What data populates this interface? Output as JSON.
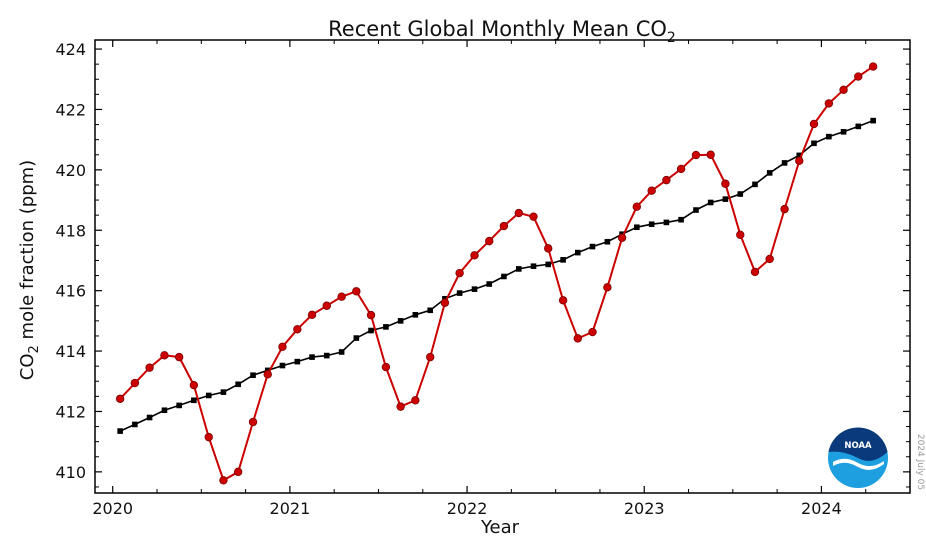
{
  "chart_data": {
    "type": "line",
    "title": "Recent Global Monthly Mean CO",
    "title_subscript": "2",
    "xlabel": "Year",
    "ylabel": {
      "prefix": "CO",
      "subscript": "2",
      "suffix": " mole fraction (ppm)"
    },
    "xlim": [
      2019.9,
      2024.5
    ],
    "ylim": [
      409.3,
      424.3
    ],
    "xticks": [
      2020,
      2021,
      2022,
      2023,
      2024
    ],
    "xtick_labels": [
      "2020",
      "2021",
      "2022",
      "2023",
      "2024"
    ],
    "yticks": [
      410,
      412,
      414,
      416,
      418,
      420,
      422,
      424
    ],
    "ytick_labels": [
      "410",
      "412",
      "414",
      "416",
      "418",
      "420",
      "422",
      "424"
    ],
    "grid": false,
    "legend": "none",
    "series": [
      {
        "key": "monthly",
        "color": "#cc0000",
        "marker": "circle",
        "x": [
          2020.042,
          2020.125,
          2020.208,
          2020.292,
          2020.375,
          2020.458,
          2020.542,
          2020.625,
          2020.708,
          2020.792,
          2020.875,
          2020.958,
          2021.042,
          2021.125,
          2021.208,
          2021.292,
          2021.375,
          2021.458,
          2021.542,
          2021.625,
          2021.708,
          2021.792,
          2021.875,
          2021.958,
          2022.042,
          2022.125,
          2022.208,
          2022.292,
          2022.375,
          2022.458,
          2022.542,
          2022.625,
          2022.708,
          2022.792,
          2022.875,
          2022.958,
          2023.042,
          2023.125,
          2023.208,
          2023.292,
          2023.375,
          2023.458,
          2023.542,
          2023.625,
          2023.708,
          2023.792,
          2023.875,
          2023.958,
          2024.042,
          2024.125,
          2024.208,
          2024.292
        ],
        "y": [
          412.42,
          412.94,
          413.45,
          413.86,
          413.8,
          412.87,
          411.15,
          409.72,
          410.0,
          411.65,
          413.23,
          414.14,
          414.72,
          415.2,
          415.5,
          415.8,
          415.98,
          415.19,
          413.47,
          412.16,
          412.37,
          413.8,
          415.6,
          416.58,
          417.17,
          417.64,
          418.14,
          418.57,
          418.45,
          417.4,
          415.68,
          414.42,
          414.63,
          416.11,
          417.75,
          418.78,
          419.31,
          419.66,
          420.03,
          420.49,
          420.5,
          419.54,
          417.85,
          416.62,
          417.05,
          418.7,
          420.3,
          421.52,
          422.2,
          422.65,
          423.09,
          423.42
        ]
      },
      {
        "key": "trend",
        "color": "#000000",
        "marker": "square",
        "x": [
          2020.042,
          2020.125,
          2020.208,
          2020.292,
          2020.375,
          2020.458,
          2020.542,
          2020.625,
          2020.708,
          2020.792,
          2020.875,
          2020.958,
          2021.042,
          2021.125,
          2021.208,
          2021.292,
          2021.375,
          2021.458,
          2021.542,
          2021.625,
          2021.708,
          2021.792,
          2021.875,
          2021.958,
          2022.042,
          2022.125,
          2022.208,
          2022.292,
          2022.375,
          2022.458,
          2022.542,
          2022.625,
          2022.708,
          2022.792,
          2022.875,
          2022.958,
          2023.042,
          2023.125,
          2023.208,
          2023.292,
          2023.375,
          2023.458,
          2023.542,
          2023.625,
          2023.708,
          2023.792,
          2023.875,
          2023.958,
          2024.042,
          2024.125,
          2024.208,
          2024.292
        ],
        "y": [
          411.35,
          411.57,
          411.8,
          412.04,
          412.2,
          412.37,
          412.53,
          412.64,
          412.9,
          413.2,
          413.36,
          413.52,
          413.65,
          413.8,
          413.85,
          413.97,
          414.43,
          414.68,
          414.8,
          415.0,
          415.2,
          415.35,
          415.73,
          415.92,
          416.05,
          416.22,
          416.47,
          416.72,
          416.81,
          416.87,
          417.02,
          417.26,
          417.46,
          417.62,
          417.87,
          418.1,
          418.2,
          418.26,
          418.35,
          418.67,
          418.92,
          419.03,
          419.2,
          419.52,
          419.9,
          420.23,
          420.48,
          420.88,
          421.1,
          421.26,
          421.44,
          421.63
        ]
      }
    ]
  },
  "logo": {
    "text": "NOAA",
    "colors": {
      "dark_blue": "#0a3a7c",
      "light_blue": "#1e9fe0"
    }
  },
  "stamp": "2024 July 05"
}
